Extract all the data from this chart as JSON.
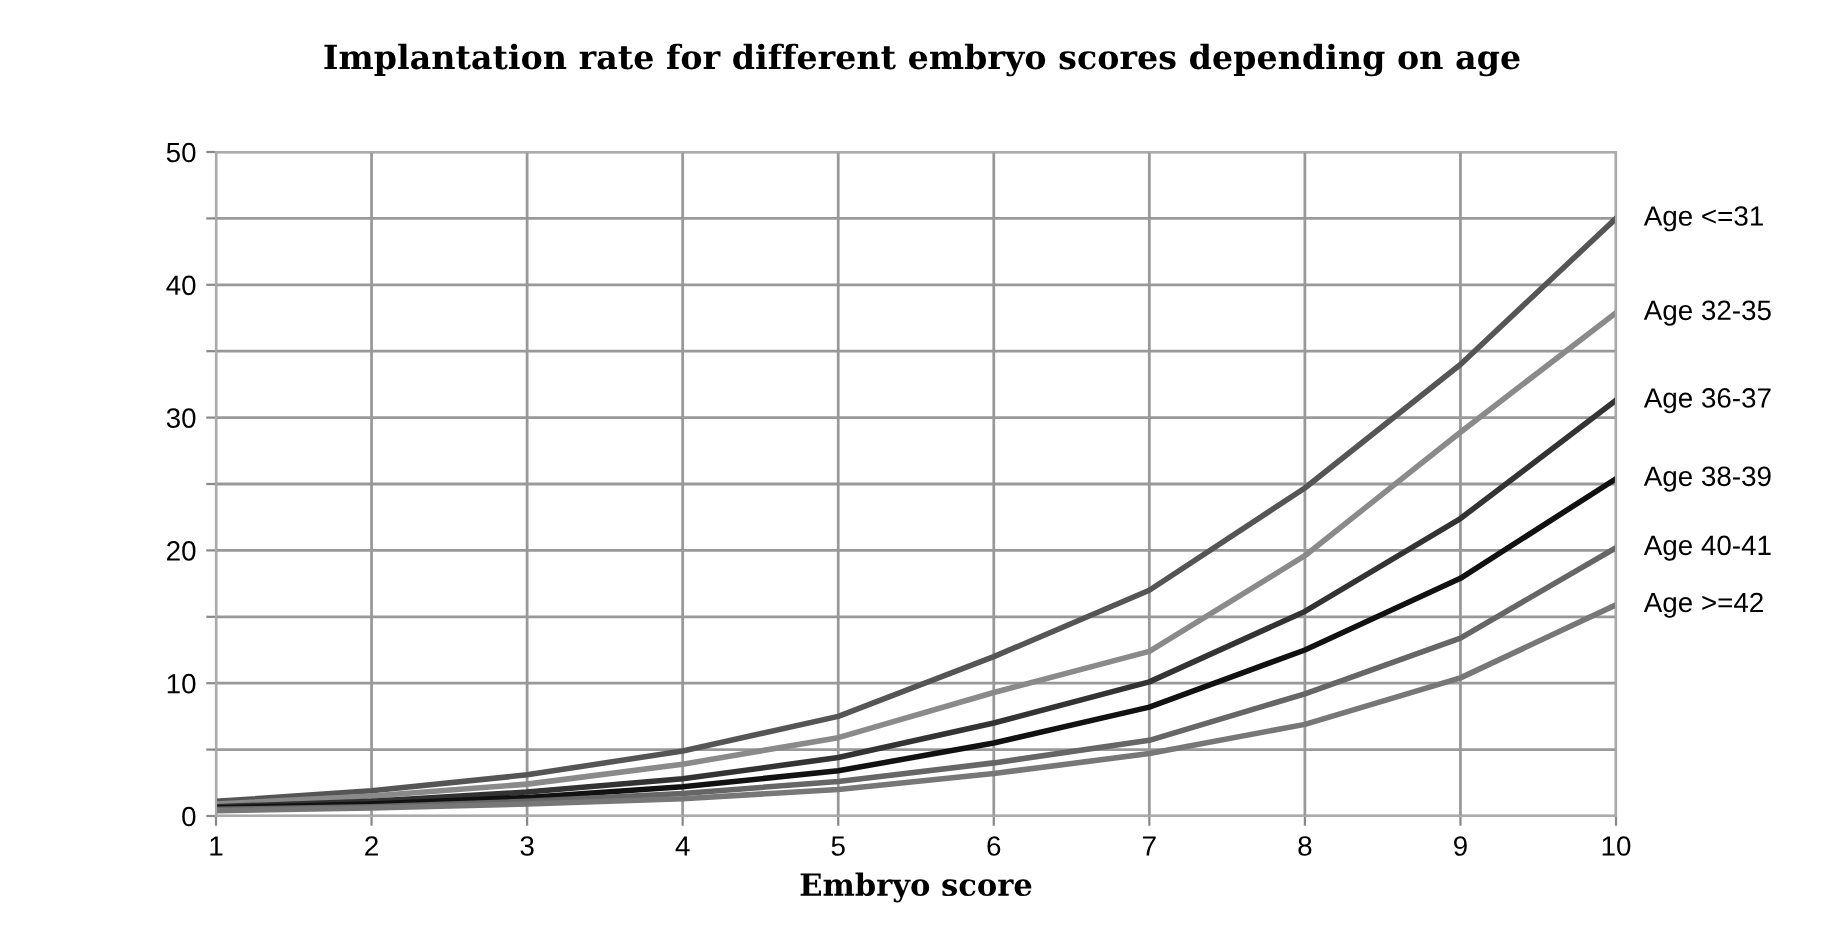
{
  "chart_data": {
    "type": "line",
    "title": "Implantation rate for different embryo scores depending on age",
    "xlabel": "Embryo score",
    "x": [
      1,
      2,
      3,
      4,
      5,
      6,
      7,
      8,
      9,
      10
    ],
    "series": [
      {
        "name": "Age <=31",
        "color": "#555555",
        "values": [
          1.1,
          1.9,
          3.1,
          4.9,
          7.5,
          12,
          17,
          24.7,
          34,
          45
        ]
      },
      {
        "name": "Age 32-35",
        "color": "#8a8a8a",
        "values": [
          0.9,
          1.5,
          2.4,
          3.9,
          5.9,
          9.3,
          12.4,
          19.6,
          28.9,
          37.9
        ]
      },
      {
        "name": "Age 36-37",
        "color": "#333333",
        "values": [
          0.7,
          1.1,
          1.8,
          2.8,
          4.4,
          7,
          10.1,
          15.4,
          22.4,
          31.3
        ]
      },
      {
        "name": "Age 38-39",
        "color": "#111111",
        "values": [
          0.6,
          0.9,
          1.4,
          2.2,
          3.4,
          5.5,
          8.2,
          12.5,
          17.9,
          25.4
        ]
      },
      {
        "name": "Age 40-41",
        "color": "#666666",
        "values": [
          0.5,
          0.7,
          1.1,
          1.7,
          2.6,
          4,
          5.7,
          9.2,
          13.4,
          20.2
        ]
      },
      {
        "name": "Age >=42",
        "color": "#777777",
        "values": [
          0.4,
          0.6,
          0.9,
          1.3,
          2,
          3.2,
          4.7,
          6.9,
          10.4,
          15.9
        ]
      }
    ],
    "xlim": [
      1,
      10
    ],
    "xticks": [
      1,
      2,
      3,
      4,
      5,
      6,
      7,
      8,
      9,
      10
    ],
    "ylim": [
      0,
      50
    ],
    "yticks": [
      0,
      {
        "value": 5,
        "label": null
      },
      10,
      {
        "value": 15,
        "label": null
      },
      20,
      {
        "value": 25,
        "label": null
      },
      30,
      {
        "value": 35,
        "label": null
      },
      40,
      {
        "value": 45,
        "label": null
      },
      50
    ],
    "grid": true,
    "legend": false,
    "marker": "none",
    "line_style": "solid"
  }
}
